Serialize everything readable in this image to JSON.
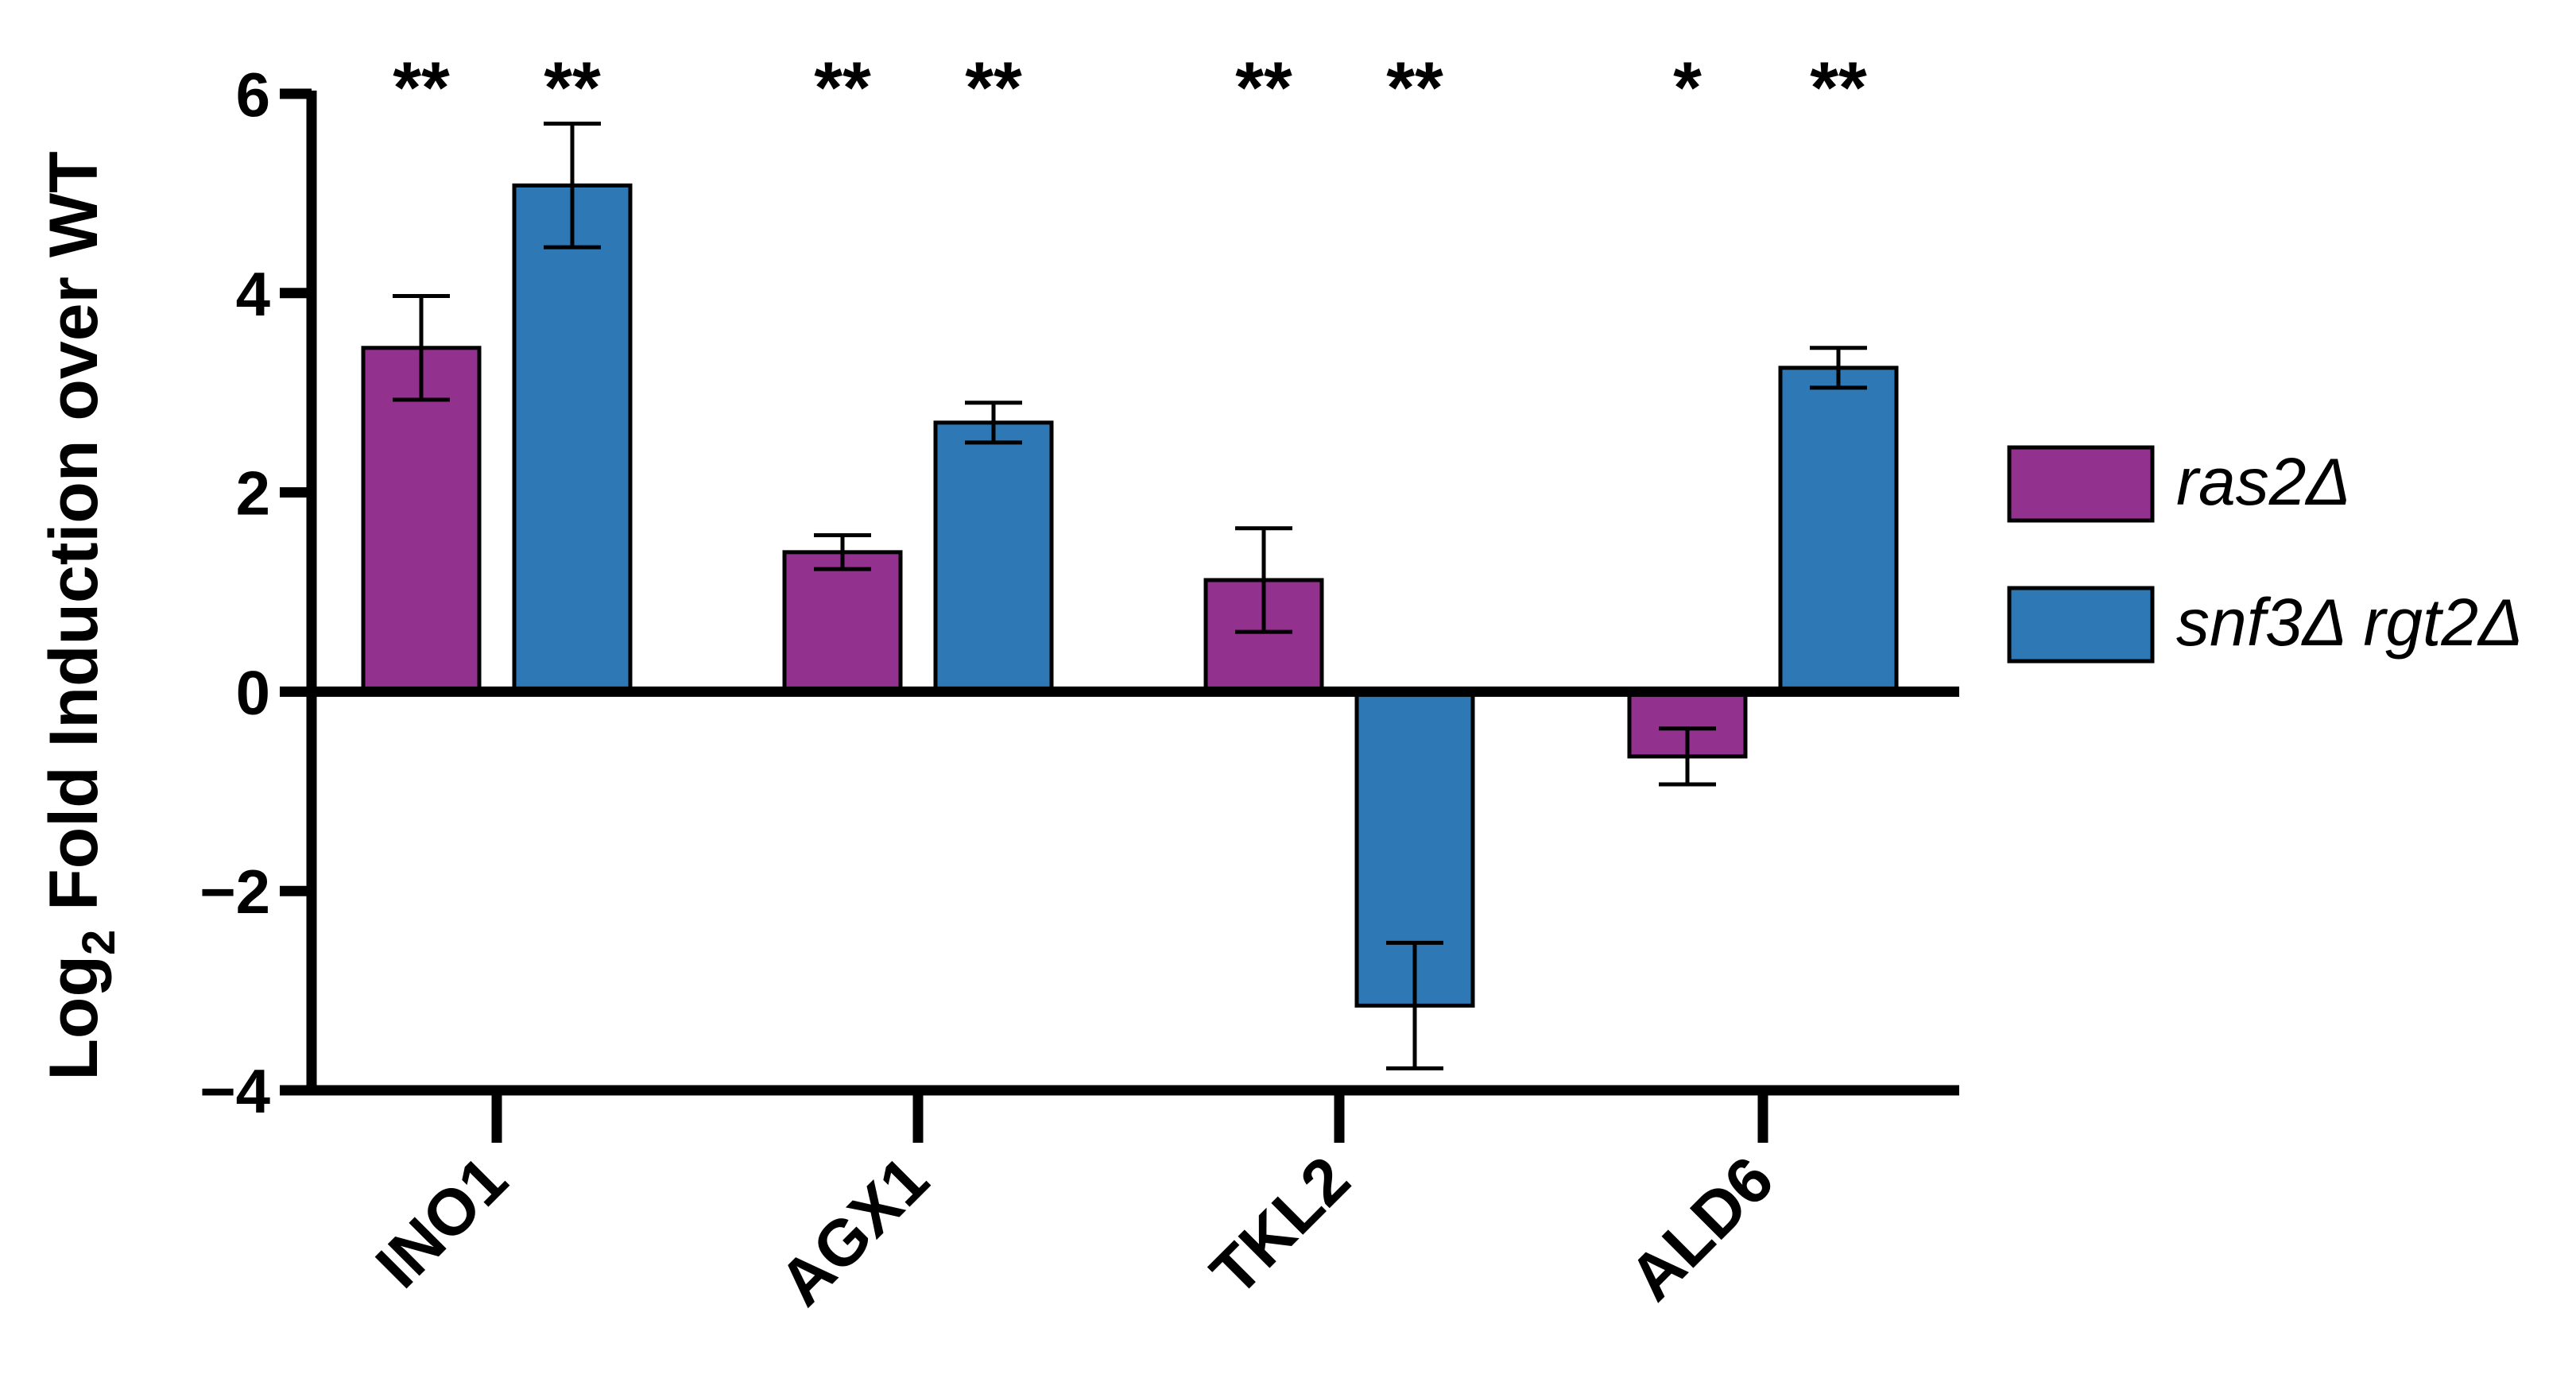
{
  "chart_data": {
    "type": "bar",
    "title": "",
    "xlabel": "",
    "ylabel_main": "Log",
    "ylabel_sub": "2",
    "ylabel_rest": " Fold Induction over WT",
    "categories": [
      "INO1",
      "AGX1",
      "TKL2",
      "ALD6"
    ],
    "ylim": [
      -4,
      6
    ],
    "yticks": [
      -4,
      -2,
      0,
      2,
      4,
      6
    ],
    "ytick_labels": [
      "−4",
      "−2",
      "0",
      "2",
      "4",
      "6"
    ],
    "series": [
      {
        "name": "ras2Δ",
        "color": "#93318f",
        "values": [
          3.45,
          1.4,
          1.12,
          -0.65
        ],
        "error": [
          0.52,
          0.17,
          0.52,
          0.28
        ]
      },
      {
        "name": "snf3Δ rgt2Δ",
        "color": "#2e79b5",
        "values": [
          5.08,
          2.7,
          -3.15,
          3.25
        ],
        "error": [
          0.62,
          0.2,
          0.63,
          0.2
        ]
      }
    ],
    "significance": [
      [
        "**",
        "**"
      ],
      [
        "**",
        "**"
      ],
      [
        "**",
        "**"
      ],
      [
        "*",
        "**"
      ]
    ],
    "legend": {
      "position": "right",
      "entries": [
        "ras2Δ",
        "snf3Δ rgt2Δ"
      ]
    }
  }
}
